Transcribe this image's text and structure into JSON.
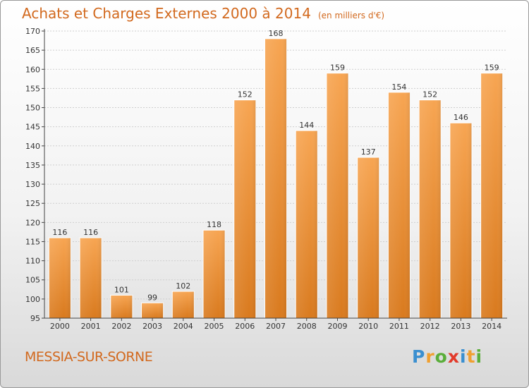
{
  "chart_data": {
    "type": "bar",
    "title": "Achats et Charges Externes 2000 à 2014",
    "unit": "(en milliers d'€)",
    "categories": [
      "2000",
      "2001",
      "2002",
      "2003",
      "2004",
      "2005",
      "2006",
      "2007",
      "2008",
      "2009",
      "2010",
      "2011",
      "2012",
      "2013",
      "2014"
    ],
    "values": [
      116,
      116,
      101,
      99,
      102,
      118,
      152,
      168,
      144,
      159,
      137,
      154,
      152,
      146,
      159
    ],
    "yticks": [
      95,
      100,
      105,
      110,
      115,
      120,
      125,
      130,
      135,
      140,
      145,
      150,
      155,
      160,
      165,
      170
    ],
    "ylim": [
      95,
      170
    ],
    "grid": true,
    "bar_color": "#f0913a"
  },
  "footer": {
    "city": "MESSIA-SUR-SORNE",
    "logo": [
      {
        "char": "P",
        "color": "#3a8fd0"
      },
      {
        "char": "r",
        "color": "#f0a030"
      },
      {
        "char": "o",
        "color": "#5aae3a"
      },
      {
        "char": "x",
        "color": "#e23a2a"
      },
      {
        "char": "i",
        "color": "#3a8fd0"
      },
      {
        "char": "t",
        "color": "#f0a030"
      },
      {
        "char": "i",
        "color": "#5aae3a"
      }
    ]
  }
}
